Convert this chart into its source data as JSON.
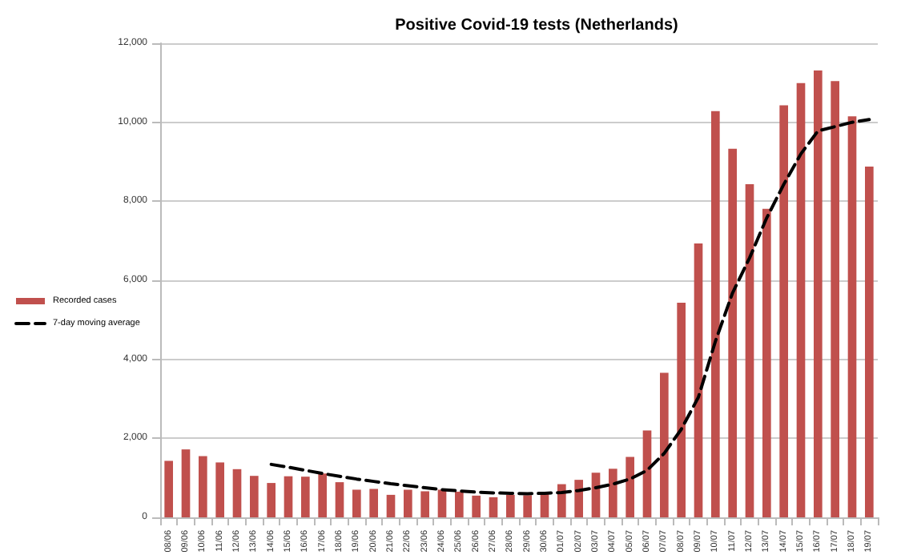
{
  "chart_data": {
    "type": "bar",
    "title": "Positive Covid-19 tests (Netherlands)",
    "categories": [
      "08/06",
      "09/06",
      "10/06",
      "11/06",
      "12/06",
      "13/06",
      "14/06",
      "15/06",
      "16/06",
      "17/06",
      "18/06",
      "19/06",
      "20/06",
      "21/06",
      "22/06",
      "23/06",
      "24/06",
      "25/06",
      "26/06",
      "27/06",
      "28/06",
      "29/06",
      "30/06",
      "01/07",
      "02/07",
      "03/07",
      "04/07",
      "05/07",
      "06/07",
      "07/07",
      "08/07",
      "09/07",
      "10/07",
      "11/07",
      "12/07",
      "13/07",
      "14/07",
      "15/07",
      "16/07",
      "17/07",
      "18/07",
      "19/07"
    ],
    "series": [
      {
        "name": "Recorded cases",
        "color": "#c0504d",
        "values": [
          1430,
          1720,
          1550,
          1390,
          1220,
          1050,
          870,
          1040,
          1030,
          1110,
          890,
          700,
          720,
          570,
          700,
          660,
          700,
          650,
          550,
          510,
          570,
          560,
          630,
          840,
          950,
          1130,
          1230,
          1530,
          2200,
          3660,
          5430,
          6930,
          10280,
          9330,
          8430,
          7810,
          10430,
          10990,
          11310,
          11040,
          10150,
          8880
        ]
      },
      {
        "name": "7-day moving average",
        "type": "line",
        "color": "#000000",
        "line_style": "dashed",
        "marker": "none",
        "values": [
          null,
          null,
          null,
          null,
          null,
          null,
          1340,
          1270,
          1190,
          1110,
          1040,
          970,
          910,
          850,
          800,
          750,
          700,
          670,
          640,
          620,
          610,
          600,
          610,
          630,
          680,
          750,
          840,
          970,
          1190,
          1620,
          2230,
          3040,
          4460,
          5680,
          6570,
          7580,
          8430,
          9200,
          9780,
          9890,
          10000,
          10070
        ]
      }
    ],
    "ylim": [
      0,
      12000
    ],
    "yticks": [
      0,
      {
        "value": 2000,
        "label": "2,000"
      },
      {
        "value": 4000,
        "label": "4,000"
      },
      {
        "value": 6000,
        "label": "6,000"
      },
      {
        "value": 8000,
        "label": "8,000"
      },
      {
        "value": 10000,
        "label": "10,000"
      },
      {
        "value": 12000,
        "label": "12,000"
      }
    ],
    "grid": "y",
    "legend": "left"
  }
}
